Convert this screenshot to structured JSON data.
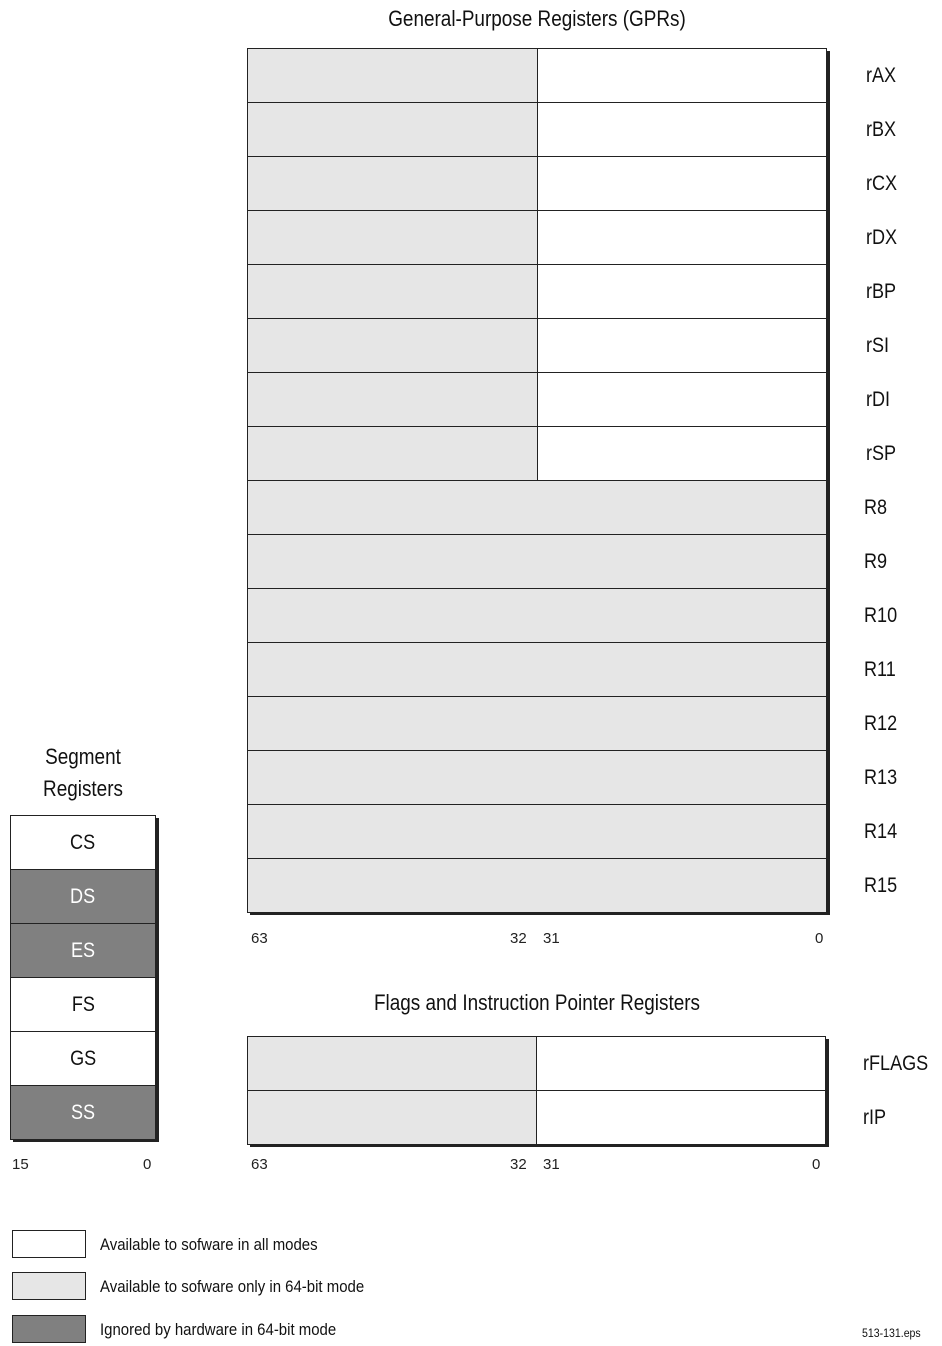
{
  "gpr": {
    "title": "General-Purpose Registers (GPRs)",
    "registers": [
      {
        "name": "rAX",
        "split": true
      },
      {
        "name": "rBX",
        "split": true
      },
      {
        "name": "rCX",
        "split": true
      },
      {
        "name": "rDX",
        "split": true
      },
      {
        "name": "rBP",
        "split": true
      },
      {
        "name": "rSI",
        "split": true
      },
      {
        "name": "rDI",
        "split": true
      },
      {
        "name": "rSP",
        "split": true
      },
      {
        "name": "R8",
        "split": false
      },
      {
        "name": "R9",
        "split": false
      },
      {
        "name": "R10",
        "split": false
      },
      {
        "name": "R11",
        "split": false
      },
      {
        "name": "R12",
        "split": false
      },
      {
        "name": "R13",
        "split": false
      },
      {
        "name": "R14",
        "split": false
      },
      {
        "name": "R15",
        "split": false
      }
    ],
    "bits": {
      "b63": "63",
      "b32": "32",
      "b31": "31",
      "b0": "0"
    }
  },
  "flags": {
    "title": "Flags and Instruction Pointer Registers",
    "registers": [
      {
        "name": "rFLAGS"
      },
      {
        "name": "rIP"
      }
    ],
    "bits": {
      "b63": "63",
      "b32": "32",
      "b31": "31",
      "b0": "0"
    }
  },
  "segment": {
    "title_line1": "Segment",
    "title_line2": "Registers",
    "registers": [
      {
        "name": "CS",
        "type": "white"
      },
      {
        "name": "DS",
        "type": "dark"
      },
      {
        "name": "ES",
        "type": "dark"
      },
      {
        "name": "FS",
        "type": "white"
      },
      {
        "name": "GS",
        "type": "white"
      },
      {
        "name": "SS",
        "type": "dark"
      }
    ],
    "bits": {
      "b15": "15",
      "b0": "0"
    }
  },
  "legend": [
    {
      "type": "white",
      "label": "Available to sofware in all modes"
    },
    {
      "type": "light",
      "label": "Available to sofware only in 64-bit mode"
    },
    {
      "type": "dark",
      "label": "Ignored by hardware in 64-bit mode"
    }
  ],
  "colors": {
    "light": "#e6e6e6",
    "dark": "#808080",
    "white": "#ffffff"
  },
  "footer": "513-131.eps"
}
